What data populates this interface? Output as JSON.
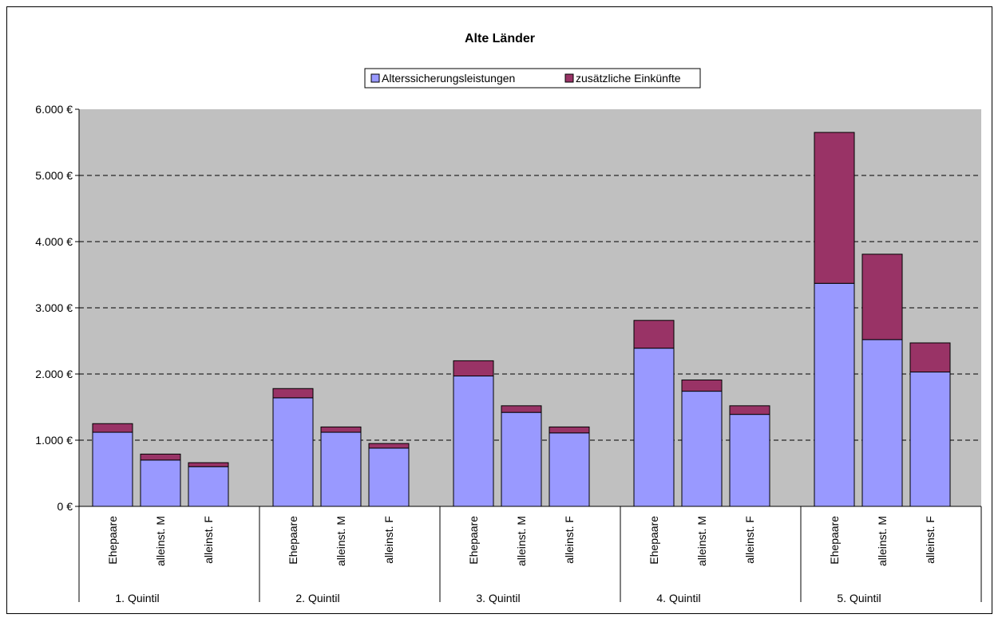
{
  "chart_data": {
    "type": "bar",
    "stacked": true,
    "title": "Alte Länder",
    "xlabel": "",
    "ylabel": "",
    "ylim": [
      0,
      6000
    ],
    "ytick_labels": [
      "0 €",
      "1.000 €",
      "2.000 €",
      "3.000 €",
      "4.000 €",
      "5.000 €",
      "6.000 €"
    ],
    "yticks": [
      0,
      1000,
      2000,
      3000,
      4000,
      5000,
      6000
    ],
    "grid": "horizontal dashed",
    "legend_position": "top",
    "groups": [
      "1. Quintil",
      "2. Quintil",
      "3. Quintil",
      "4. Quintil",
      "5. Quintil"
    ],
    "subcategories": [
      "Ehepaare",
      "alleinst. M",
      "alleinst. F"
    ],
    "series": [
      {
        "name": "Alterssicherungsleistungen",
        "color": "#9999ff",
        "values": [
          [
            1120,
            700,
            600
          ],
          [
            1640,
            1120,
            880
          ],
          [
            1970,
            1420,
            1110
          ],
          [
            2390,
            1740,
            1390
          ],
          [
            3370,
            2520,
            2030
          ]
        ]
      },
      {
        "name": "zusätzliche Einkünfte",
        "color": "#993366",
        "values": [
          [
            130,
            90,
            60
          ],
          [
            140,
            80,
            70
          ],
          [
            230,
            100,
            90
          ],
          [
            420,
            170,
            130
          ],
          [
            2280,
            1290,
            440
          ]
        ]
      }
    ],
    "plot_background": "#c0c0c0"
  }
}
